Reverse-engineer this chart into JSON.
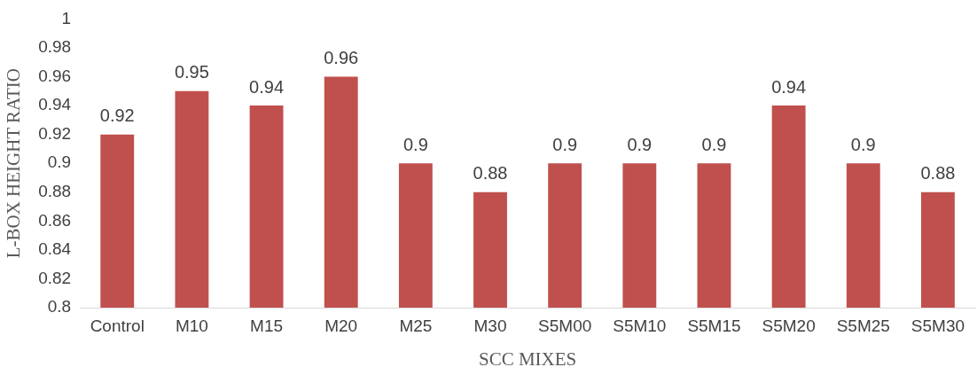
{
  "chart_data": {
    "type": "bar",
    "xlabel": "SCC MIXES",
    "ylabel": "L-BOX HEIGHT RATIO",
    "categories": [
      "Control",
      "M10",
      "M15",
      "M20",
      "M25",
      "M30",
      "S5M00",
      "S5M10",
      "S5M15",
      "S5M20",
      "S5M25",
      "S5M30"
    ],
    "values": [
      0.92,
      0.95,
      0.94,
      0.96,
      0.9,
      0.88,
      0.9,
      0.9,
      0.9,
      0.94,
      0.9,
      0.88
    ],
    "color": "#c0504d",
    "ylim": [
      0.8,
      1
    ],
    "yticks": [
      0.8,
      0.82,
      0.84,
      0.86,
      0.88,
      0.9,
      0.92,
      0.94,
      0.96,
      0.98,
      1
    ],
    "grid": false,
    "legend": false,
    "data_labels": true
  }
}
